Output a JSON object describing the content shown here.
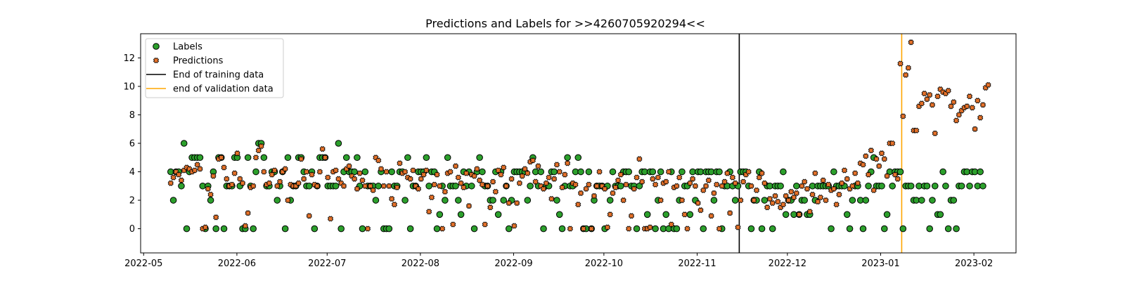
{
  "chart_data": {
    "type": "scatter",
    "title": "Predictions and Labels for >>4260705920294<<",
    "xlabel": "",
    "ylabel": "",
    "x_start": "2022-05-10",
    "x_end": "2023-02-04",
    "xlim": [
      "2022-04-30",
      "2023-02-15"
    ],
    "ylim": [
      -1.7,
      13.7
    ],
    "x_ticks": [
      "2022-05-01",
      "2022-06-01",
      "2022-07-01",
      "2022-08-01",
      "2022-09-01",
      "2022-10-01",
      "2022-11-01",
      "2022-12-01",
      "2023-01-01",
      "2023-02-01"
    ],
    "x_tick_labels": [
      "2022-05",
      "2022-06",
      "2022-07",
      "2022-08",
      "2022-09",
      "2022-10",
      "2022-11",
      "2022-12",
      "2023-01",
      "2023-02"
    ],
    "y_ticks": [
      0,
      2,
      4,
      6,
      8,
      10,
      12
    ],
    "y_tick_labels": [
      "0",
      "2",
      "4",
      "6",
      "8",
      "10",
      "12"
    ],
    "grid": false,
    "legend_position": "top-left",
    "series": [
      {
        "name": "Labels",
        "marker": "circle",
        "color": "#2ca02c",
        "edge_color": "#000000",
        "y": [
          4,
          2,
          4,
          4,
          3,
          6,
          0,
          4,
          5,
          5,
          5,
          5,
          3,
          0,
          3,
          2,
          4,
          0,
          5,
          5,
          0,
          3,
          3,
          3,
          5,
          5,
          3,
          0,
          0,
          5,
          3,
          0,
          4,
          6,
          6,
          5,
          3,
          3,
          4,
          4,
          2,
          3,
          4,
          0,
          5,
          2,
          3,
          3,
          5,
          5,
          4,
          3,
          3,
          4,
          0,
          3,
          5,
          5,
          5,
          3,
          3,
          3,
          3,
          6,
          0,
          4,
          5,
          4,
          4,
          4,
          5,
          3,
          0,
          4,
          3,
          3,
          3,
          2,
          3,
          4,
          0,
          0,
          0,
          4,
          3,
          3,
          4,
          4,
          2,
          5,
          0,
          3,
          3,
          4,
          4,
          4,
          5,
          3,
          4,
          4,
          0,
          1,
          3,
          2,
          5,
          3,
          3,
          3,
          2,
          1,
          4,
          3,
          4,
          3,
          0,
          4,
          5,
          4,
          3,
          3,
          2,
          2,
          4,
          1,
          4,
          2,
          3,
          0,
          2,
          4,
          4,
          4,
          4,
          4,
          2,
          3,
          5,
          4,
          3,
          4,
          0,
          3,
          3,
          4,
          4,
          2,
          1,
          0,
          3,
          5,
          3,
          3,
          4,
          5,
          4,
          0,
          0,
          4,
          0,
          2,
          3,
          3,
          3,
          0,
          3,
          2,
          4,
          3,
          3,
          3,
          4,
          4,
          4,
          3,
          3,
          0,
          3,
          4,
          4,
          1,
          4,
          4,
          0,
          2,
          4,
          0,
          1,
          0,
          4,
          0,
          0,
          2,
          4,
          3,
          3,
          1,
          4,
          2,
          4,
          4,
          0,
          4,
          4,
          4,
          2,
          4,
          4,
          0,
          3,
          3,
          4,
          3,
          2,
          3,
          4,
          4,
          4,
          3,
          0,
          2,
          2,
          4,
          0,
          2,
          3,
          3,
          0,
          3,
          3,
          3,
          4,
          1,
          2,
          2,
          1,
          3,
          1,
          2,
          2,
          1,
          1,
          3,
          2,
          3,
          3,
          3,
          3,
          3,
          0,
          4,
          3,
          3,
          3,
          3,
          1,
          0,
          2,
          3,
          3,
          2,
          0,
          2,
          3,
          4,
          5,
          3,
          3,
          3,
          0,
          1,
          4,
          3,
          4,
          4,
          4,
          0,
          3,
          3,
          3,
          2,
          2,
          3,
          2,
          3,
          3,
          0,
          2,
          3,
          1,
          1,
          4,
          3,
          0,
          2,
          2,
          0,
          3,
          3,
          4,
          4,
          3,
          4,
          4,
          3,
          4,
          3
        ]
      },
      {
        "name": "Predictions",
        "marker": "x",
        "color": "#e8732a",
        "edge_color": "#000000",
        "y": [
          3.2,
          3.6,
          4.0,
          3.8,
          3.4,
          4.1,
          4.3,
          4.2,
          4.0,
          4.1,
          4.5,
          4.2,
          0.0,
          0.1,
          2.8,
          2.4,
          3.7,
          0.8,
          4.9,
          5.0,
          4.3,
          3.5,
          3.0,
          3.1,
          3.9,
          5.3,
          3.5,
          3.2,
          0.2,
          1.1,
          2.9,
          3.0,
          5.0,
          5.5,
          5.8,
          4.0,
          3.1,
          3.2,
          3.8,
          4.1,
          3.0,
          3.3,
          4.0,
          4.2,
          2.0,
          3.1,
          3.0,
          3.0,
          3.2,
          4.9,
          3.5,
          4.0,
          0.9,
          3.8,
          3.1,
          3.0,
          4.0,
          5.6,
          5.0,
          3.6,
          0.7,
          4.0,
          4.1,
          3.5,
          3.2,
          3.0,
          4.2,
          4.4,
          3.7,
          3.5,
          2.8,
          3.9,
          3.4,
          3.0,
          0.0,
          3.0,
          2.7,
          5.0,
          4.8,
          4.2,
          3.0,
          4.0,
          3.0,
          2.1,
          1.7,
          2.9,
          4.6,
          3.9,
          4.0,
          3.6,
          3.5,
          4.1,
          3.0,
          2.8,
          3.5,
          3.8,
          4.1,
          1.2,
          2.2,
          3.1,
          3.8,
          3.0,
          0.0,
          2.6,
          3.9,
          4.0,
          0.3,
          4.4,
          3.6,
          3.2,
          2.9,
          3.9,
          1.6,
          3.8,
          3.7,
          4.2,
          3.4,
          3.1,
          0.3,
          3.0,
          1.5,
          3.3,
          2.6,
          4.1,
          3.8,
          4.3,
          3.0,
          1.8,
          3.5,
          0.2,
          1.8,
          3.2,
          3.7,
          4.2,
          3.9,
          4.7,
          4.8,
          3.3,
          4.4,
          3.0,
          2.8,
          3.2,
          3.6,
          2.1,
          3.5,
          4.5,
          4.0,
          2.9,
          3.8,
          4.6,
          0.0,
          3.2,
          3.1,
          1.7,
          2.5,
          0.0,
          2.8,
          3.1,
          0.0,
          2.3,
          3.0,
          4.0,
          3.0,
          2.8,
          0.1,
          1.0,
          2.5,
          2.9,
          3.4,
          3.8,
          2.0,
          3.1,
          0.0,
          0.9,
          2.8,
          3.6,
          4.9,
          3.3,
          0.0,
          0.0,
          0.1,
          3.5,
          3.1,
          3.6,
          2.0,
          3.2,
          3.3,
          4.0,
          0.3,
          2.9,
          3.0,
          3.6,
          2.0,
          1.0,
          0.0,
          3.2,
          3.5,
          3.0,
          1.8,
          1.3,
          2.7,
          3.0,
          3.4,
          0.9,
          2.5,
          3.1,
          0.0,
          3.0,
          3.3,
          3.9,
          1.1,
          3.6,
          3.2,
          0.1,
          2.0,
          3.3,
          3.8,
          4.0,
          3.0,
          2.0,
          2.7,
          3.6,
          3.9,
          3.2,
          1.5,
          2.1,
          1.8,
          2.3,
          1.9,
          1.5,
          1.7,
          2.3,
          2.0,
          2.6,
          2.2,
          2.5,
          1.0,
          3.0,
          3.3,
          2.8,
          1.2,
          2.4,
          3.9,
          1.9,
          2.2,
          3.4,
          2.0,
          3.1,
          2.7,
          2.8,
          1.7,
          2.4,
          3.2,
          4.1,
          3.5,
          2.8,
          3.0,
          3.9,
          3.2,
          4.6,
          4.5,
          5.1,
          3.8,
          5.5,
          2.7,
          4.9,
          4.4,
          5.3,
          4.9,
          3.7,
          6.0,
          6.0,
          3.8,
          3.5,
          11.6,
          7.9,
          10.8,
          11.3,
          13.1,
          6.9,
          6.9,
          8.6,
          8.8,
          9.5,
          9.1,
          9.4,
          8.7,
          6.7,
          9.3,
          9.8,
          9.6,
          9.5,
          9.7,
          8.6,
          8.9,
          7.6,
          8.0,
          8.3,
          8.5,
          8.6,
          9.3,
          8.5,
          7.0,
          9.0,
          7.8,
          8.7,
          9.9,
          10.1
        ]
      }
    ],
    "vlines": [
      {
        "name": "End of training data",
        "x": "2022-11-15",
        "color": "#000000"
      },
      {
        "name": "end of validation data",
        "x": "2023-01-08",
        "color": "#ffa500"
      }
    ]
  }
}
